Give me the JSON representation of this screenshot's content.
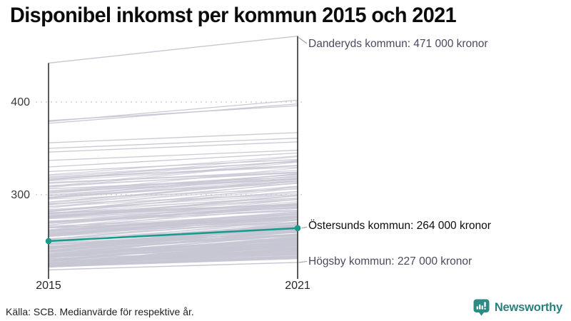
{
  "title": "Disponibel inkomst per kommun 2015 och 2021",
  "source": "Källa: SCB. Medianvärde för respektive år.",
  "branding": {
    "name": "Newsworthy",
    "logo_icon": "bar-chart-speech-bubble",
    "logo_color": "#2e8a84",
    "text_color": "#2b7f7e"
  },
  "chart_data": {
    "type": "line",
    "subtype": "slopegraph",
    "title": "Disponibel inkomst per kommun 2015 och 2021",
    "x": [
      2015,
      2021
    ],
    "x_tick_labels": [
      "2015",
      "2021"
    ],
    "y_ticks": [
      400,
      300
    ],
    "y_tick_labels": [
      "400",
      "300"
    ],
    "y_unit": "tusen kronor",
    "ylim": [
      219,
      471
    ],
    "grid": "dotted horizontal at y ticks",
    "legend_position": "none",
    "colors": {
      "highlight": "#189a8b",
      "background_line": "#c7c6d3",
      "axis": "#161616",
      "gridline": "#c9c9c9",
      "connector": "#9a9aa8"
    },
    "series": [
      {
        "name": "Danderyds kommun",
        "values": [
          442,
          471
        ],
        "label": "Danderyds kommun: 471 000 kronor",
        "highlighted": false
      },
      {
        "name": "Östersunds kommun",
        "values": [
          250,
          264
        ],
        "label": "Östersunds kommun: 264 000 kronor",
        "highlighted": true
      },
      {
        "name": "Högsby kommun",
        "values": [
          219,
          227
        ],
        "label": "Högsby kommun: 227 000 kronor",
        "highlighted": false
      }
    ],
    "background_series": {
      "description": "Unlabeled Swedish municipalities, values estimated from pixel positions (thousand kronor)",
      "count": 270,
      "upper_outliers": [
        [
          379,
          402
        ],
        [
          377,
          398
        ],
        [
          380,
          396
        ],
        [
          356,
          367
        ],
        [
          350,
          361
        ],
        [
          346,
          357
        ],
        [
          337,
          348
        ],
        [
          330,
          345
        ],
        [
          325,
          338
        ]
      ],
      "band_2015_range": [
        222,
        322
      ],
      "delta_range": [
        8,
        28
      ],
      "seed": 11
    }
  }
}
